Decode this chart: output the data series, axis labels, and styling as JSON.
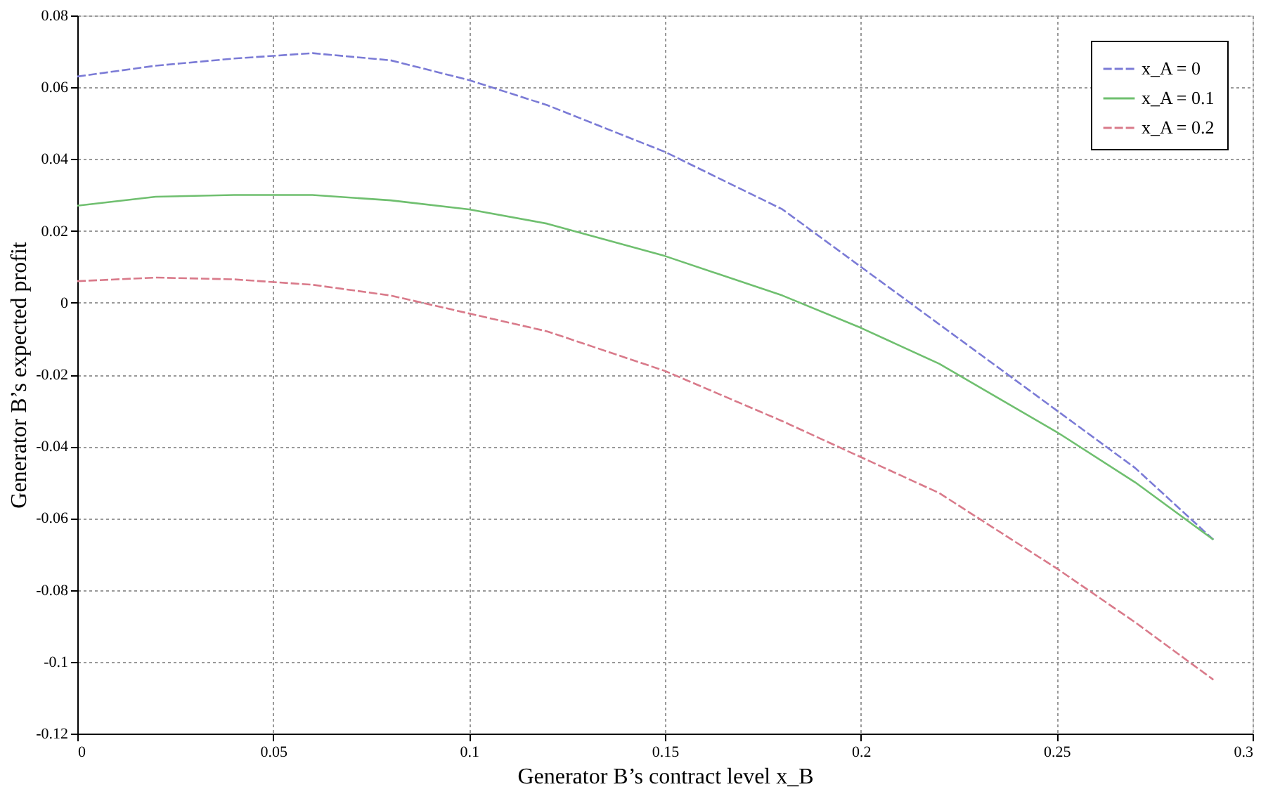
{
  "chart_data": {
    "type": "line",
    "xlabel": "Generator B’s contract level x_B",
    "ylabel": "Generator B’s expected profit",
    "x": [
      0,
      0.02,
      0.04,
      0.06,
      0.08,
      0.1,
      0.12,
      0.15,
      0.18,
      0.2,
      0.22,
      0.25,
      0.27,
      0.29
    ],
    "series": [
      {
        "name": "x_A = 0",
        "color": "#7b7bd6",
        "line_style": "dashed",
        "values": [
          0.063,
          0.066,
          0.068,
          0.0695,
          0.0675,
          0.062,
          0.055,
          0.042,
          0.026,
          0.01,
          -0.006,
          -0.03,
          -0.046,
          -0.066
        ]
      },
      {
        "name": "x_A = 0.1",
        "color": "#6fbf6f",
        "line_style": "solid",
        "values": [
          0.027,
          0.0295,
          0.03,
          0.03,
          0.0285,
          0.026,
          0.022,
          0.013,
          0.002,
          -0.007,
          -0.017,
          -0.036,
          -0.05,
          -0.066
        ]
      },
      {
        "name": "x_A = 0.2",
        "color": "#d97a8a",
        "line_style": "dashed",
        "values": [
          0.006,
          0.007,
          0.0065,
          0.005,
          0.002,
          -0.003,
          -0.008,
          -0.019,
          -0.033,
          -0.043,
          -0.053,
          -0.074,
          -0.089,
          -0.105
        ]
      }
    ],
    "xlim": [
      0,
      0.3
    ],
    "xticks": [
      0,
      0.05,
      0.1,
      0.15,
      0.2,
      0.25,
      0.3
    ],
    "ylim": [
      -0.12,
      0.08
    ],
    "yticks": [
      -0.12,
      -0.1,
      -0.08,
      -0.06,
      -0.04,
      -0.02,
      0,
      0.02,
      0.04,
      0.06,
      0.08
    ],
    "grid": true,
    "legend": "top right"
  }
}
